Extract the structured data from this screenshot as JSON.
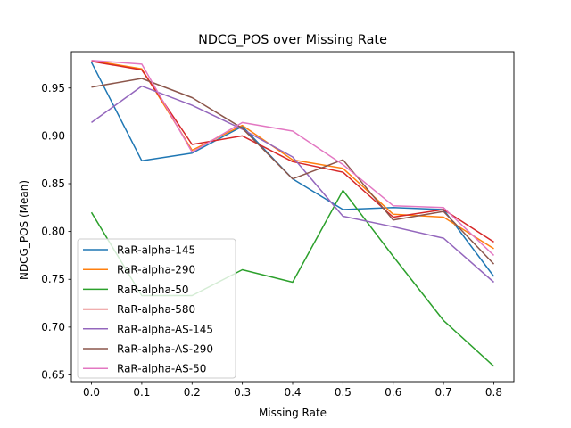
{
  "chart_data": {
    "type": "line",
    "title": "NDCG_POS over Missing Rate",
    "xlabel": "Missing Rate",
    "ylabel": "NDCG_POS (Mean)",
    "x": [
      0.0,
      0.1,
      0.2,
      0.3,
      0.4,
      0.5,
      0.6,
      0.7,
      0.8
    ],
    "xticks": [
      "0.0",
      "0.1",
      "0.2",
      "0.3",
      "0.4",
      "0.5",
      "0.6",
      "0.7",
      "0.8"
    ],
    "yticks": [
      "0.65",
      "0.70",
      "0.75",
      "0.80",
      "0.85",
      "0.90",
      "0.95"
    ],
    "xlim": [
      -0.04,
      0.84
    ],
    "ylim": [
      0.643,
      0.988
    ],
    "grid": false,
    "legend_position": "lower-left",
    "series": [
      {
        "name": "RaR-alpha-145",
        "color": "#1f77b4",
        "values": [
          0.977,
          0.874,
          0.882,
          0.91,
          0.855,
          0.823,
          0.825,
          0.823,
          0.753
        ]
      },
      {
        "name": "RaR-alpha-290",
        "color": "#ff7f0e",
        "values": [
          0.979,
          0.97,
          0.885,
          0.911,
          0.875,
          0.866,
          0.818,
          0.815,
          0.782
        ]
      },
      {
        "name": "RaR-alpha-50",
        "color": "#2ca02c",
        "values": [
          0.82,
          0.733,
          0.733,
          0.76,
          0.747,
          0.843,
          0.774,
          0.707,
          0.659
        ]
      },
      {
        "name": "RaR-alpha-580",
        "color": "#d62728",
        "values": [
          0.978,
          0.969,
          0.891,
          0.9,
          0.873,
          0.862,
          0.815,
          0.823,
          0.789
        ]
      },
      {
        "name": "RaR-alpha-AS-145",
        "color": "#9467bd",
        "values": [
          0.914,
          0.952,
          0.932,
          0.907,
          0.878,
          0.816,
          0.805,
          0.793,
          0.747
        ]
      },
      {
        "name": "RaR-alpha-AS-290",
        "color": "#8c564b",
        "values": [
          0.951,
          0.96,
          0.94,
          0.908,
          0.855,
          0.875,
          0.812,
          0.821,
          0.766
        ]
      },
      {
        "name": "RaR-alpha-AS-50",
        "color": "#e377c2",
        "values": [
          0.979,
          0.975,
          0.883,
          0.914,
          0.905,
          0.87,
          0.827,
          0.825,
          0.775
        ]
      }
    ]
  }
}
